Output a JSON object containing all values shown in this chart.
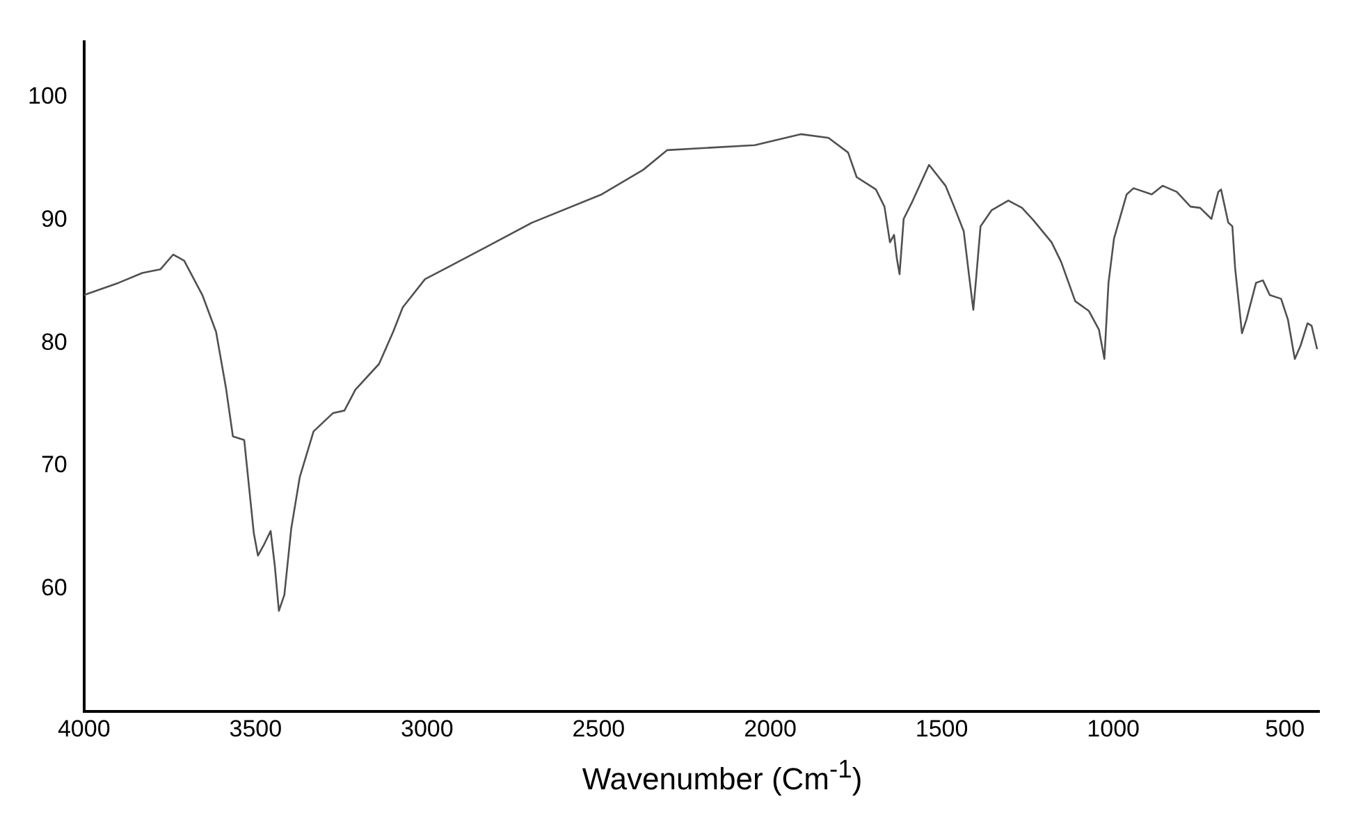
{
  "chart_data": {
    "type": "line",
    "xlabel": "Wavenumber (Cm$^{-1}$)",
    "xlim": [
      4000,
      400
    ],
    "xticks": [
      4000,
      3500,
      3000,
      2500,
      2000,
      1500,
      1000,
      500
    ],
    "ylim": [
      50,
      104.5
    ],
    "yticks": [
      60,
      70,
      80,
      90,
      100
    ],
    "grid": false,
    "legend": false,
    "marker": "none",
    "line_style": "solid",
    "series": [
      {
        "color": "#505050",
        "x": [
          4000,
          3899,
          3830,
          3777,
          3740,
          3708,
          3655,
          3615,
          3586,
          3566,
          3533,
          3505,
          3493,
          3477,
          3456,
          3444,
          3432,
          3416,
          3396,
          3371,
          3331,
          3274,
          3241,
          3209,
          3140,
          3099,
          3071,
          3006,
          2937,
          2815,
          2694,
          2491,
          2370,
          2300,
          2045,
          1911,
          1830,
          1773,
          1748,
          1692,
          1667,
          1651,
          1639,
          1631,
          1623,
          1611,
          1586,
          1537,
          1489,
          1464,
          1436,
          1420,
          1408,
          1400,
          1387,
          1355,
          1306,
          1266,
          1233,
          1180,
          1152,
          1111,
          1071,
          1042,
          1026,
          1014,
          998,
          961,
          941,
          888,
          856,
          815,
          775,
          747,
          714,
          694,
          686,
          665,
          653,
          645,
          625,
          612,
          584,
          564,
          544,
          511,
          491,
          471,
          454,
          434,
          422,
          406
        ],
        "values": [
          83.9,
          84.9,
          85.7,
          86.0,
          87.2,
          86.7,
          83.9,
          80.9,
          76.3,
          72.4,
          72.1,
          64.5,
          62.7,
          63.5,
          64.7,
          61.9,
          58.2,
          59.5,
          64.9,
          69.1,
          72.8,
          74.3,
          74.5,
          76.2,
          78.3,
          80.9,
          82.9,
          85.2,
          86.2,
          88.0,
          89.8,
          92.1,
          94.1,
          95.7,
          96.1,
          97.0,
          96.7,
          95.5,
          93.5,
          92.5,
          91.1,
          88.2,
          88.8,
          86.9,
          85.6,
          90.1,
          91.5,
          94.5,
          92.8,
          91.1,
          89.1,
          85.4,
          82.7,
          85.2,
          89.5,
          90.8,
          91.6,
          91.0,
          90.0,
          88.2,
          86.6,
          83.4,
          82.6,
          81.1,
          78.7,
          84.9,
          88.5,
          92.1,
          92.6,
          92.1,
          92.8,
          92.3,
          91.1,
          91.0,
          90.1,
          92.3,
          92.5,
          89.8,
          89.5,
          86.1,
          80.8,
          81.9,
          84.9,
          85.1,
          83.9,
          83.6,
          81.9,
          78.7,
          79.8,
          81.6,
          81.4,
          79.5
        ]
      }
    ]
  }
}
